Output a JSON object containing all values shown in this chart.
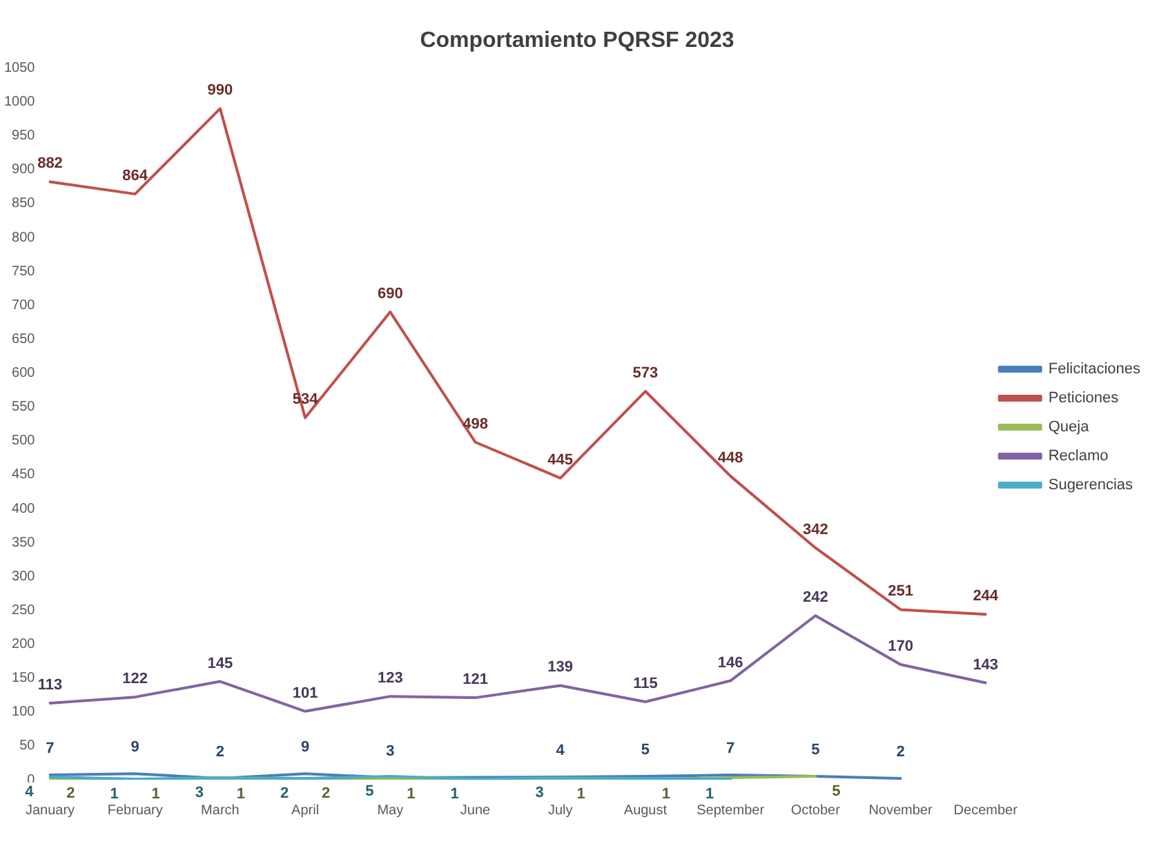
{
  "chart_data": {
    "type": "line",
    "title": "Comportamiento PQRSF 2023",
    "categories": [
      "January",
      "February",
      "March",
      "April",
      "May",
      "June",
      "July",
      "August",
      "September",
      "October",
      "November",
      "December"
    ],
    "series": [
      {
        "name": "Felicitaciones",
        "color": "#4a7ebb",
        "values": [
          7,
          9,
          2,
          9,
          3,
          null,
          4,
          5,
          7,
          5,
          2,
          null
        ]
      },
      {
        "name": "Peticiones",
        "color": "#c0504d",
        "values": [
          882,
          864,
          990,
          534,
          690,
          498,
          445,
          573,
          448,
          342,
          251,
          244
        ]
      },
      {
        "name": "Queja",
        "color": "#9bbb59",
        "values": [
          2,
          1,
          1,
          2,
          1,
          null,
          1,
          1,
          null,
          5,
          null,
          null
        ]
      },
      {
        "name": "Reclamo",
        "color": "#8064a2",
        "values": [
          113,
          122,
          145,
          101,
          123,
          121,
          139,
          115,
          146,
          242,
          170,
          143
        ]
      },
      {
        "name": "Sugerencias",
        "color": "#4bacc6",
        "values": [
          4,
          1,
          3,
          2,
          5,
          1,
          3,
          null,
          1,
          null,
          null,
          null
        ]
      }
    ],
    "ylim": [
      0,
      1050
    ],
    "yticks": [
      0,
      50,
      100,
      150,
      200,
      250,
      300,
      350,
      400,
      450,
      500,
      550,
      600,
      650,
      700,
      750,
      800,
      850,
      900,
      950,
      1000,
      1050
    ],
    "grid": false,
    "legend": "right",
    "marker": "none",
    "line_style": "solid",
    "data_labels": true
  }
}
